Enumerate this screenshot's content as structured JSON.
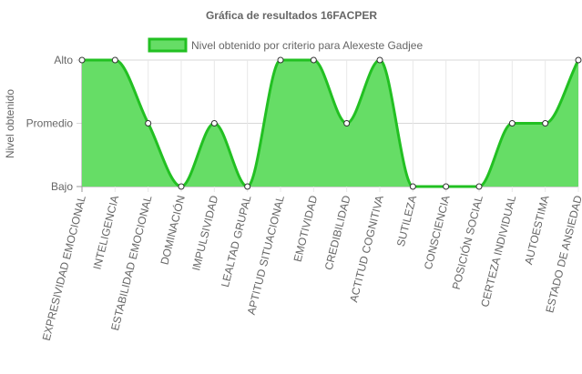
{
  "chart_data": {
    "type": "area",
    "title": "Gráfica de resultados 16FACPER",
    "ylabel": "Nivel obtenido",
    "xlabel": "",
    "y_levels": [
      "Bajo",
      "Promedio",
      "Alto"
    ],
    "ylim": [
      0,
      2
    ],
    "categories": [
      "EXPRESIVIDAD EMOCIONAL",
      "INTELIGENCIA",
      "ESTABILIDAD EMOCIONAL",
      "DOMINACIÓN",
      "IMPULSIVIDAD",
      "LEALTAD GRUPAL",
      "APTITUD SITUACIONAL",
      "EMOTIVIDAD",
      "CREDIBILIDAD",
      "ACTITUD COGNITIVA",
      "SUTILEZA",
      "CONSCIENCIA",
      "POSICIÓN SOCIAL",
      "CERTEZA INDIVIDUAL",
      "AUTOESTIMA",
      "ESTADO DE ANSIEDAD"
    ],
    "series": [
      {
        "name": "Nivel obtenido por criterio para Alexeste Gadjee",
        "values": [
          2,
          2,
          1,
          0,
          1,
          0,
          2,
          2,
          1,
          2,
          0,
          0,
          0,
          1,
          1,
          2
        ],
        "line_color": "#22c022",
        "fill_color": "#66dd66"
      }
    ],
    "grid": true,
    "legend_position": "top"
  }
}
